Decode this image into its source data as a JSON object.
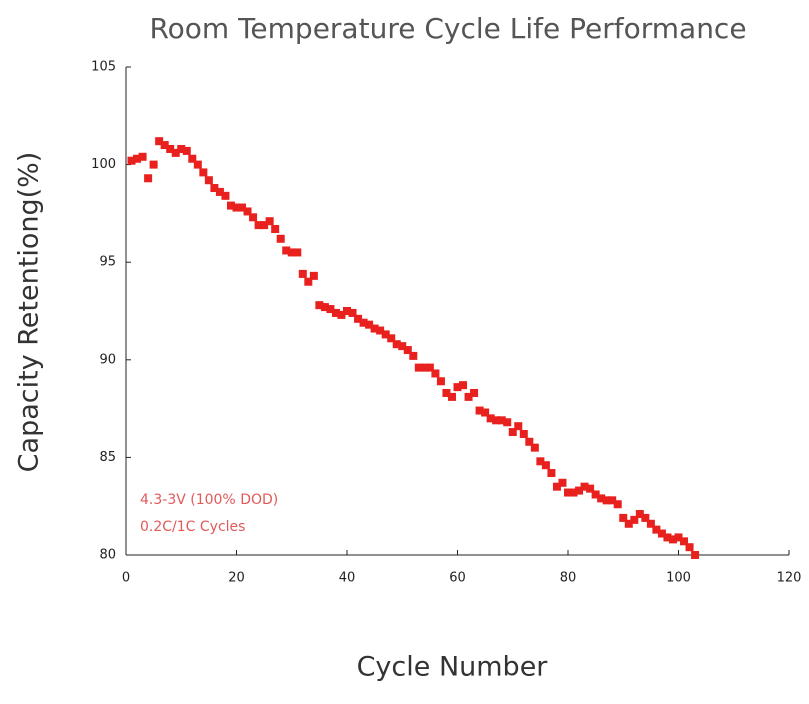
{
  "chart_data": {
    "type": "scatter",
    "title": "Room Temperature Cycle Life Performance",
    "x_label": "Cycle Number",
    "y_label": "Capacity  Retentiong(%)",
    "annotations": [
      "4.3-3V (100% DOD)",
      "0.2C/1C Cycles"
    ],
    "xlim": [
      0,
      120
    ],
    "xticks": [
      0,
      20,
      40,
      60,
      80,
      100,
      120
    ],
    "ylim": [
      80,
      105
    ],
    "yticks": [
      80,
      85,
      90,
      95,
      100,
      105
    ],
    "color": "#e8201e",
    "x": [
      1,
      2,
      3,
      4,
      5,
      6,
      7,
      8,
      9,
      10,
      11,
      12,
      13,
      14,
      15,
      16,
      17,
      18,
      19,
      20,
      21,
      22,
      23,
      24,
      25,
      26,
      27,
      28,
      29,
      30,
      31,
      32,
      33,
      34,
      35,
      36,
      37,
      38,
      39,
      40,
      41,
      42,
      43,
      44,
      45,
      46,
      47,
      48,
      49,
      50,
      51,
      52,
      53,
      54,
      55,
      56,
      57,
      58,
      59,
      60,
      61,
      62,
      63,
      64,
      65,
      66,
      67,
      68,
      69,
      70,
      71,
      72,
      73,
      74,
      75,
      76,
      77,
      78,
      79,
      80,
      81,
      82,
      83,
      84,
      85,
      86,
      87,
      88,
      89,
      90,
      91,
      92,
      93,
      94,
      95,
      96,
      97,
      98,
      99,
      100,
      101,
      102,
      103
    ],
    "values": [
      100.2,
      100.3,
      100.4,
      99.3,
      100.0,
      101.2,
      101.0,
      100.8,
      100.6,
      100.8,
      100.7,
      100.3,
      100.0,
      99.6,
      99.2,
      98.8,
      98.6,
      98.4,
      97.9,
      97.8,
      97.8,
      97.6,
      97.3,
      96.9,
      96.9,
      97.1,
      96.7,
      96.2,
      95.6,
      95.5,
      95.5,
      94.4,
      94.0,
      94.3,
      92.8,
      92.7,
      92.6,
      92.4,
      92.3,
      92.5,
      92.4,
      92.1,
      91.9,
      91.8,
      91.6,
      91.5,
      91.3,
      91.1,
      90.8,
      90.7,
      90.5,
      90.2,
      89.6,
      89.6,
      89.6,
      89.3,
      88.9,
      88.3,
      88.1,
      88.6,
      88.7,
      88.1,
      88.3,
      87.4,
      87.3,
      87.0,
      86.9,
      86.9,
      86.8,
      86.3,
      86.6,
      86.2,
      85.8,
      85.5,
      84.8,
      84.6,
      84.2,
      83.5,
      83.7,
      83.2,
      83.2,
      83.3,
      83.5,
      83.4,
      83.1,
      82.9,
      82.8,
      82.8,
      82.6,
      81.9,
      81.6,
      81.8,
      82.1,
      81.9,
      81.6,
      81.3,
      81.1,
      80.9,
      80.8,
      80.9,
      80.7,
      80.4,
      80.0
    ]
  }
}
